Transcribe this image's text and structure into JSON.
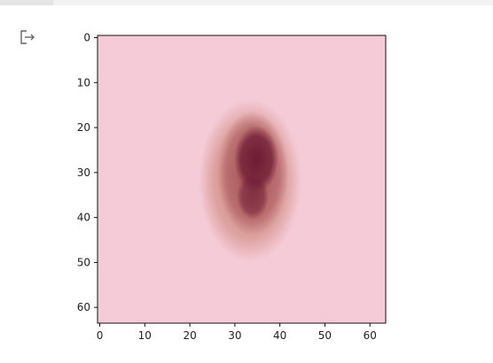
{
  "output": {
    "icon": "output-redirect-icon"
  },
  "image": {
    "grid_size": 64,
    "background_color": "#f0b0c4",
    "lesion_outer_color": "#c98070",
    "lesion_mid_color": "#a85459",
    "lesion_core_color": "#6e1c36"
  },
  "plot": {
    "y_ticks": [
      {
        "label": "0",
        "value": 0
      },
      {
        "label": "10",
        "value": 10
      },
      {
        "label": "20",
        "value": 20
      },
      {
        "label": "30",
        "value": 30
      },
      {
        "label": "40",
        "value": 40
      },
      {
        "label": "50",
        "value": 50
      },
      {
        "label": "60",
        "value": 60
      }
    ],
    "x_ticks": [
      {
        "label": "0",
        "value": 0
      },
      {
        "label": "10",
        "value": 10
      },
      {
        "label": "20",
        "value": 20
      },
      {
        "label": "30",
        "value": 30
      },
      {
        "label": "40",
        "value": 40
      },
      {
        "label": "50",
        "value": 50
      },
      {
        "label": "60",
        "value": 60
      }
    ]
  }
}
